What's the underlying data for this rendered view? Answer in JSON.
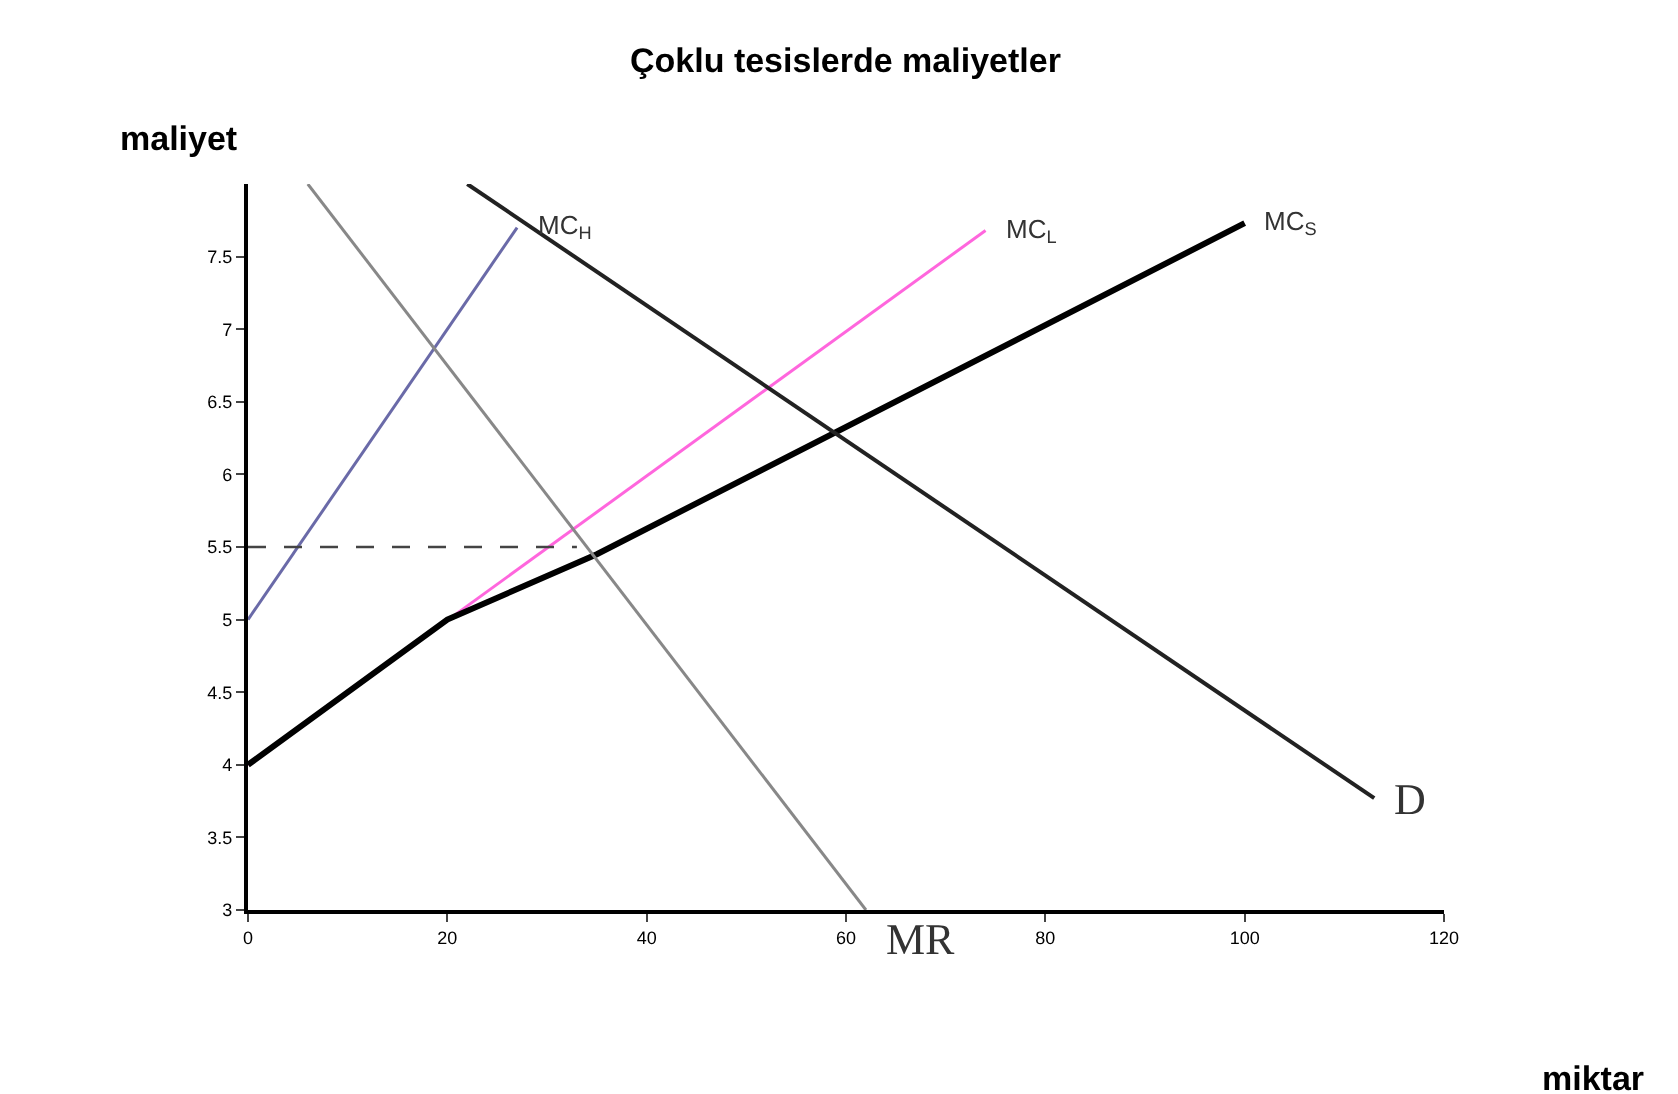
{
  "chart_data": {
    "type": "line",
    "title": "Çoklu tesislerde maliyetler",
    "xlabel": "miktar",
    "ylabel": "maliyet",
    "xlim": [
      0,
      120
    ],
    "xticks": [
      0,
      20,
      40,
      60,
      80,
      100,
      120
    ],
    "ylim": [
      3,
      8
    ],
    "yticks": [
      3,
      3.5,
      4,
      4.5,
      5,
      5.5,
      6,
      6.5,
      7,
      7.5
    ],
    "legend": false,
    "marker": "none",
    "series": [
      {
        "name": "MC$_{H}$",
        "color": "#6a6aa8",
        "x": [
          0,
          27
        ],
        "values": [
          5,
          7.7
        ]
      },
      {
        "name": "MC$_{L}$",
        "color": "#ff66dd",
        "x": [
          0,
          74
        ],
        "values": [
          4,
          7.68
        ]
      },
      {
        "name": "MC$_{S}$",
        "color": "#000000",
        "x": [
          0,
          20,
          35,
          100
        ],
        "values": [
          4,
          5.0,
          5.45,
          7.73
        ]
      },
      {
        "name": "D",
        "color": "#222222",
        "x": [
          22,
          113
        ],
        "values": [
          8,
          3.77
        ]
      },
      {
        "name": "MR",
        "color": "#888888",
        "x": [
          6,
          62
        ],
        "values": [
          8,
          3
        ]
      },
      {
        "color": "#444444",
        "line_style": "dashed",
        "x": [
          0,
          33
        ],
        "values": [
          5.5,
          5.5
        ]
      }
    ]
  }
}
